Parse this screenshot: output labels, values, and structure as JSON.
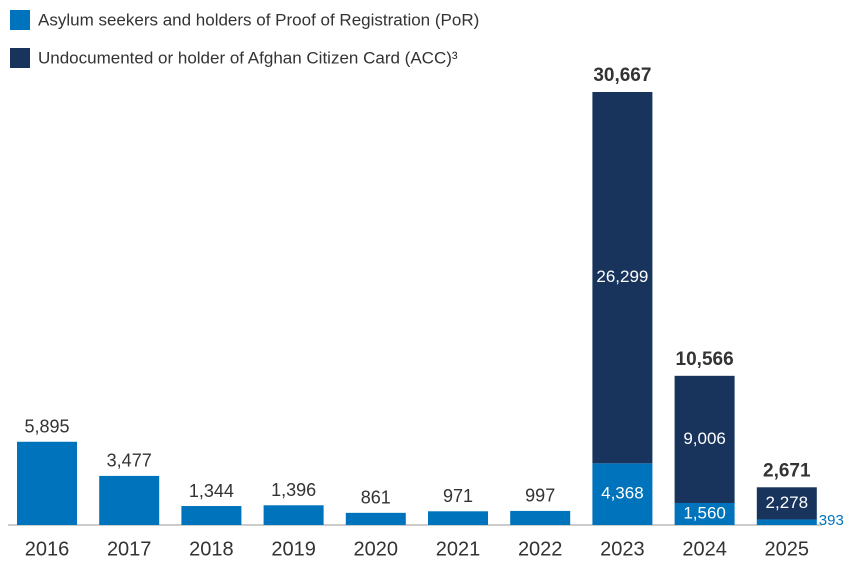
{
  "chart_data": {
    "type": "stacked_bar",
    "categories": [
      "2016",
      "2017",
      "2018",
      "2019",
      "2020",
      "2021",
      "2022",
      "2023",
      "2024",
      "2025"
    ],
    "series": [
      {
        "name": "Asylum seekers and holders of Proof of Registration (PoR)",
        "color": "#0073bd",
        "values": [
          5895,
          3477,
          1344,
          1396,
          861,
          971,
          997,
          4368,
          1560,
          393
        ],
        "value_labels": [
          "5,895",
          "3,477",
          "1,344",
          "1,396",
          "861",
          "971",
          "997",
          "4,368",
          "1,560",
          "393"
        ]
      },
      {
        "name": "Undocumented or holder of Afghan Citizen Card (ACC)³",
        "color": "#18345d",
        "values": [
          null,
          null,
          null,
          null,
          null,
          null,
          null,
          26299,
          9006,
          2278
        ],
        "value_labels": [
          null,
          null,
          null,
          null,
          null,
          null,
          null,
          "26,299",
          "9,006",
          "2,278"
        ]
      }
    ],
    "totals": [
      null,
      null,
      null,
      null,
      null,
      null,
      null,
      30667,
      10566,
      2671
    ],
    "total_labels": [
      null,
      null,
      null,
      null,
      null,
      null,
      null,
      "30,667",
      "10,566",
      "2,671"
    ],
    "grid": false
  }
}
